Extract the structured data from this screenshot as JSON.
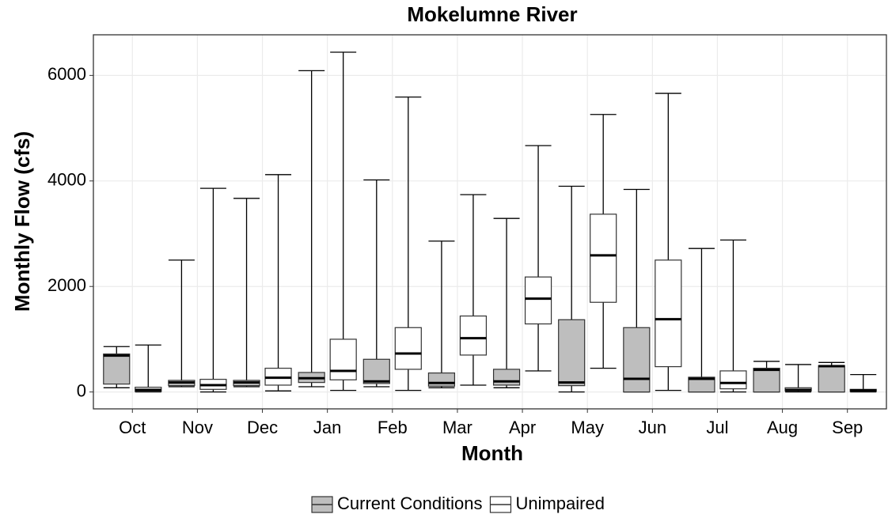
{
  "chart_data": {
    "type": "box",
    "title": "Mokelumne River",
    "x_label": "Month",
    "y_label": "Monthly Flow (cfs)",
    "categories": [
      "Oct",
      "Nov",
      "Dec",
      "Jan",
      "Feb",
      "Mar",
      "Apr",
      "May",
      "Jun",
      "Jul",
      "Aug",
      "Sep"
    ],
    "series": [
      {
        "name": "Current Conditions",
        "color": "#bebebe",
        "min": [
          80,
          100,
          100,
          100,
          100,
          80,
          80,
          0,
          0,
          0,
          0,
          0
        ],
        "q1": [
          150,
          120,
          120,
          180,
          160,
          110,
          130,
          120,
          0,
          0,
          0,
          0
        ],
        "median": [
          690,
          180,
          180,
          260,
          200,
          170,
          200,
          180,
          250,
          250,
          420,
          490
        ],
        "q3": [
          720,
          220,
          220,
          370,
          620,
          360,
          430,
          1370,
          1220,
          280,
          450,
          500
        ],
        "max": [
          860,
          2500,
          3670,
          6090,
          4020,
          2860,
          3290,
          3900,
          3840,
          2720,
          580,
          560
        ]
      },
      {
        "name": "Unimpaired",
        "color": "#ffffff",
        "min": [
          0,
          0,
          20,
          30,
          30,
          130,
          400,
          450,
          30,
          0,
          0,
          0
        ],
        "q1": [
          10,
          50,
          130,
          230,
          430,
          700,
          1290,
          1700,
          480,
          60,
          20,
          10
        ],
        "median": [
          40,
          130,
          270,
          400,
          730,
          1020,
          1770,
          2590,
          1380,
          170,
          40,
          30
        ],
        "q3": [
          90,
          240,
          450,
          1000,
          1220,
          1440,
          2180,
          3370,
          2500,
          400,
          80,
          50
        ],
        "max": [
          890,
          3860,
          4120,
          6440,
          5590,
          3740,
          4670,
          5260,
          5660,
          2880,
          520,
          330
        ]
      }
    ],
    "ylim": [
      -320,
      6770
    ],
    "yticks": [
      0,
      2000,
      4000,
      6000
    ],
    "grid": true,
    "legend": "bottom"
  }
}
